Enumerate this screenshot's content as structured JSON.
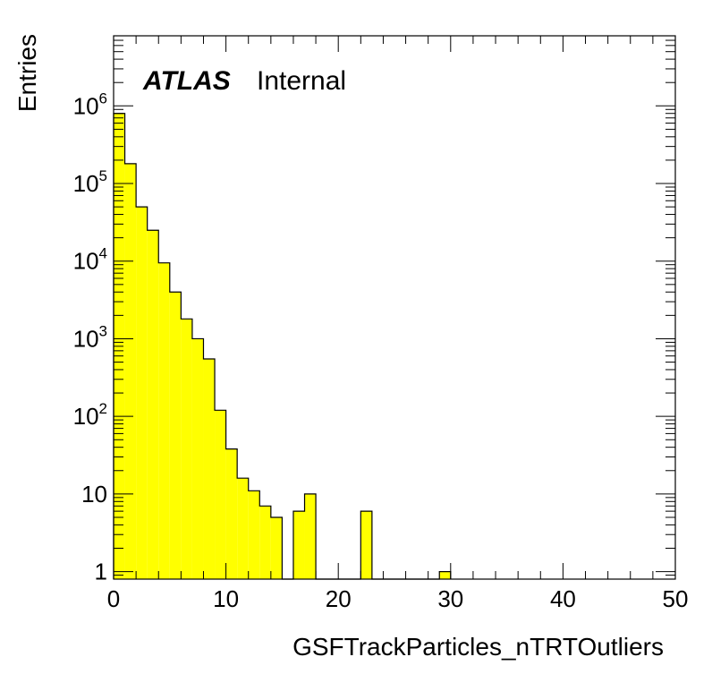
{
  "chart_data": {
    "type": "bar",
    "histogram": true,
    "y_scale": "log",
    "xlim": [
      0,
      50
    ],
    "ylim": [
      0.8,
      8000000
    ],
    "xlabel": "GSFTrackParticles_nTRTOutliers",
    "ylabel": "Entries",
    "bar_color": "#ffff00",
    "bin_width": 1,
    "x": [
      0,
      1,
      2,
      3,
      4,
      5,
      6,
      7,
      8,
      9,
      10,
      11,
      12,
      13,
      14,
      15,
      16,
      17,
      18,
      19,
      20,
      21,
      22,
      23,
      24,
      25,
      26,
      27,
      28,
      29
    ],
    "values": [
      800000,
      180000,
      50000,
      25000,
      9500,
      4000,
      1800,
      1000,
      550,
      120,
      38,
      16,
      11,
      7,
      5,
      0,
      6,
      10,
      0,
      0,
      0,
      0,
      6,
      0,
      0,
      0,
      0,
      0,
      0,
      1
    ],
    "x_ticks": [
      {
        "value": 0,
        "label": "0"
      },
      {
        "value": 10,
        "label": "10"
      },
      {
        "value": 20,
        "label": "20"
      },
      {
        "value": 30,
        "label": "30"
      },
      {
        "value": 40,
        "label": "40"
      },
      {
        "value": 50,
        "label": "50"
      }
    ],
    "y_ticks": [
      {
        "value": 1,
        "base": "1",
        "exp": ""
      },
      {
        "value": 10,
        "base": "10",
        "exp": ""
      },
      {
        "value": 100,
        "base": "10",
        "exp": "2"
      },
      {
        "value": 1000,
        "base": "10",
        "exp": "3"
      },
      {
        "value": 10000,
        "base": "10",
        "exp": "4"
      },
      {
        "value": 100000,
        "base": "10",
        "exp": "5"
      },
      {
        "value": 1000000,
        "base": "10",
        "exp": "6"
      }
    ],
    "annotations": {
      "atlas": "ATLAS",
      "status": "Internal"
    },
    "grid": false,
    "legend": "none"
  }
}
